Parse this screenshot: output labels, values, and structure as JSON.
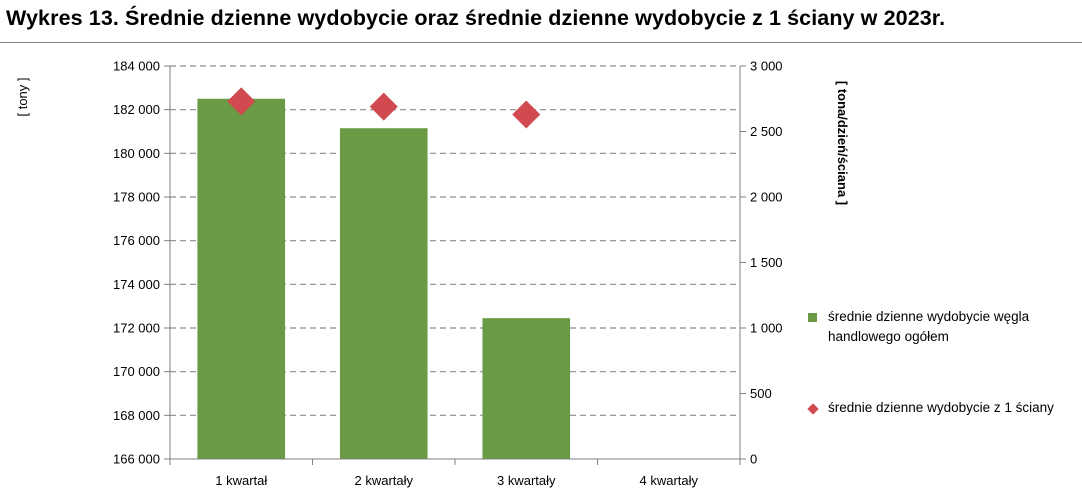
{
  "title": "Wykres 13. Średnie dzienne wydobycie oraz średnie dzienne wydobycie z 1 ściany w 2023r.",
  "chart_data": {
    "type": "bar",
    "categories": [
      "1 kwartał",
      "2 kwartały",
      "3 kwartały",
      "4 kwartały"
    ],
    "series": [
      {
        "name": "średnie dzienne wydobycie węgla handlowego ogółem",
        "kind": "bar",
        "axis": "left",
        "color": "#6a9a44",
        "values": [
          182500,
          181150,
          172450,
          null
        ]
      },
      {
        "name": "średnie dzienne wydobycie z 1 ściany",
        "kind": "marker-diamond",
        "axis": "right",
        "color": "#d04a4f",
        "values": [
          2730,
          2690,
          2630,
          null
        ]
      }
    ],
    "ylabel": "[ tony ]",
    "y2label": "[ tona/dzień/ściana ]",
    "ylim": [
      166000,
      184000
    ],
    "y2lim": [
      0,
      3000
    ],
    "yticks": [
      "166 000",
      "168 000",
      "170 000",
      "172 000",
      "174 000",
      "176 000",
      "178 000",
      "180 000",
      "182 000",
      "184 000"
    ],
    "y2ticks": [
      "0",
      "500",
      "1 000",
      "1 500",
      "2 000",
      "2 500",
      "3 000"
    ],
    "grid": true,
    "legend_position": "right"
  }
}
